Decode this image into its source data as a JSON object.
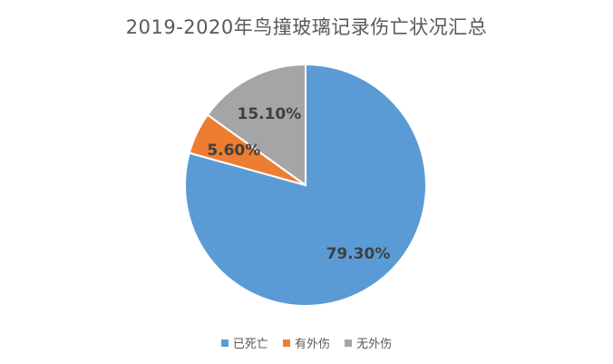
{
  "chart_data": {
    "type": "pie",
    "title": "2019-2020年鸟撞玻璃记录伤亡状况汇总",
    "categories": [
      "已死亡",
      "有外伤",
      "无外伤"
    ],
    "values": [
      79.3,
      5.6,
      15.1
    ],
    "labels": [
      "79.30%",
      "5.60%",
      "15.10%"
    ],
    "colors": [
      "#5B9BD5",
      "#ED7D31",
      "#A5A5A5"
    ],
    "legend_position": "bottom"
  }
}
